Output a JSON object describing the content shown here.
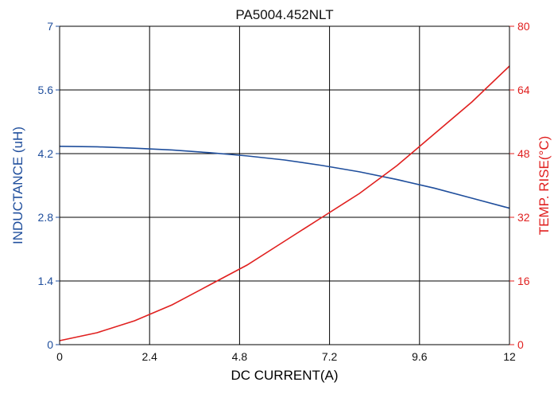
{
  "chart_data": {
    "type": "line",
    "title": "PA5004.452NLT",
    "xlabel": "DC CURRENT(A)",
    "xlim": [
      0,
      12
    ],
    "x_ticks": [
      "0",
      "2.4",
      "4.8",
      "7.2",
      "9.6",
      "12"
    ],
    "y_left": {
      "label": "INDUCTANCE (uH)",
      "ylim": [
        0,
        7
      ],
      "ticks": [
        "0",
        "1.4",
        "2.8",
        "4.2",
        "5.6",
        "7"
      ],
      "color": "#1f4e9c"
    },
    "y_right": {
      "label": "TEMP. RISE(°C)",
      "ylim": [
        0,
        80
      ],
      "ticks": [
        "0",
        "16",
        "32",
        "48",
        "64",
        "80"
      ],
      "color": "#e0201f"
    },
    "grid": true,
    "series": [
      {
        "axis": "left",
        "color": "#1f4e9c",
        "x": [
          0,
          1,
          2,
          3,
          4,
          5,
          6,
          7,
          8,
          9,
          10,
          11,
          12
        ],
        "y": [
          4.36,
          4.35,
          4.32,
          4.28,
          4.22,
          4.15,
          4.06,
          3.94,
          3.8,
          3.63,
          3.44,
          3.22,
          3.0
        ]
      },
      {
        "axis": "right",
        "color": "#e0201f",
        "x": [
          0,
          1,
          2,
          3,
          4,
          5,
          6,
          7,
          8,
          9,
          10,
          11,
          12
        ],
        "y": [
          1,
          3,
          6,
          10,
          15,
          20,
          26,
          32,
          38,
          45,
          53,
          61,
          70
        ]
      }
    ]
  }
}
